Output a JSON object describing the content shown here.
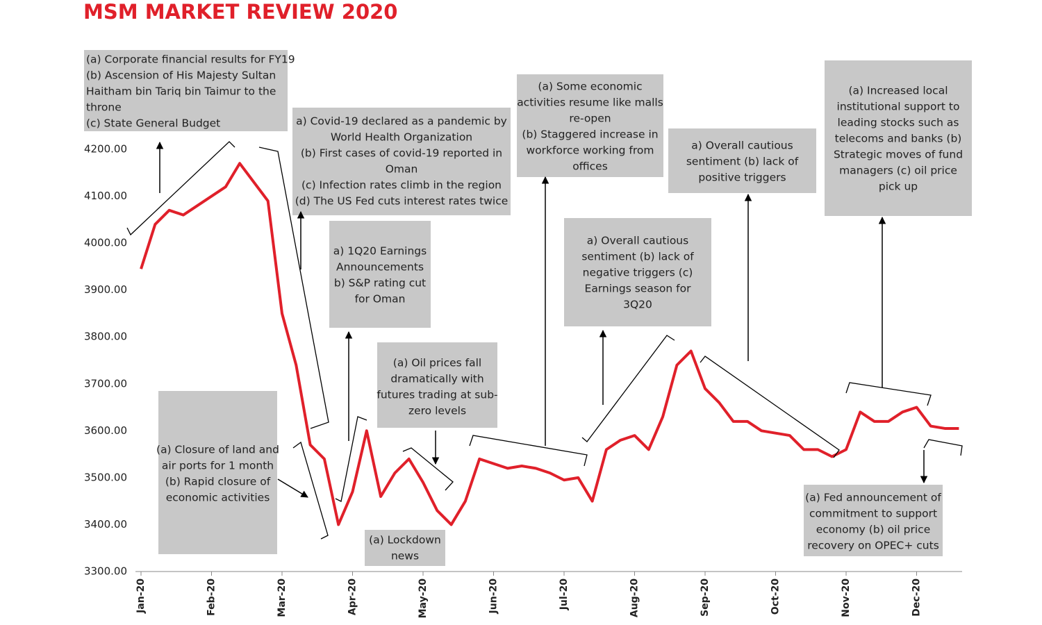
{
  "chart_data": {
    "type": "line",
    "title": "MSM MARKET REVIEW 2020",
    "categories": [
      "Jan-20",
      null,
      null,
      null,
      null,
      "Feb-20",
      null,
      null,
      null,
      null,
      "Mar-20",
      null,
      null,
      null,
      null,
      "Apr-20",
      null,
      null,
      null,
      null,
      "May-20",
      null,
      null,
      null,
      null,
      "Jun-20",
      null,
      null,
      null,
      null,
      "Jul-20",
      null,
      null,
      null,
      null,
      "Aug-20",
      null,
      null,
      null,
      null,
      "Sep-20",
      null,
      null,
      null,
      null,
      "Oct-20",
      null,
      null,
      null,
      null,
      "Nov-20",
      null,
      null,
      null,
      null,
      "Dec-20",
      null,
      null,
      null
    ],
    "series": [
      {
        "name": "MSM",
        "color": "#e0202a",
        "values": [
          3945,
          4040,
          4070,
          4060,
          4080,
          4100,
          4120,
          4170,
          4130,
          4090,
          3850,
          3740,
          3570,
          3540,
          3400,
          3470,
          3600,
          3460,
          3510,
          3540,
          3490,
          3430,
          3400,
          3450,
          3540,
          3530,
          3520,
          3525,
          3520,
          3510,
          3495,
          3500,
          3450,
          3560,
          3580,
          3590,
          3560,
          3630,
          3740,
          3770,
          3690,
          3660,
          3620,
          3620,
          3600,
          3595,
          3590,
          3560,
          3560,
          3545,
          3560,
          3640,
          3620,
          3620,
          3640,
          3650,
          3610,
          3605,
          3605
        ]
      }
    ],
    "ylim": [
      3300,
      4200
    ],
    "yticks": [
      {
        "value": 3300,
        "label": "3300.00"
      },
      {
        "value": 3400,
        "label": "3400.00"
      },
      {
        "value": 3500,
        "label": "3500.00"
      },
      {
        "value": 3600,
        "label": "3600.00"
      },
      {
        "value": 3700,
        "label": "3700.00"
      },
      {
        "value": 3800,
        "label": "3800.00"
      },
      {
        "value": 3900,
        "label": "3900.00"
      },
      {
        "value": 4000,
        "label": "4000.00"
      },
      {
        "value": 4100,
        "label": "4100.00"
      },
      {
        "value": 4200,
        "label": "4200.00"
      }
    ],
    "grid": false,
    "annotations": [
      [
        "(a) Corporate financial results for FY19",
        "(b) Ascension of His Majesty Sultan",
        "Haitham bin Tariq bin Taimur to the",
        "throne",
        "(c) State General Budget"
      ],
      [
        "a) Covid-19 declared as a pandemic by",
        "World Health Organization",
        "(b) First cases of covid-19 reported in",
        "Oman",
        "(c) Infection rates climb in the region",
        "(d) The US Fed cuts interest rates twice"
      ],
      [
        "a) 1Q20 Earnings",
        "Announcements",
        "b) S&P rating cut",
        "for Oman"
      ],
      [
        "(a) Oil prices fall",
        "dramatically with",
        "futures trading at sub-",
        "zero levels"
      ],
      [
        "(a) Closure of land and",
        "air ports for 1 month",
        "(b) Rapid closure of",
        "economic activities"
      ],
      [
        "(a) Lockdown",
        "news"
      ],
      [
        "(a) Some economic",
        "activities resume like malls",
        "re-open",
        "(b) Staggered increase in",
        "workforce working from",
        "offices"
      ],
      [
        "a) Overall cautious",
        "sentiment (b) lack of",
        "negative triggers (c)",
        "Earnings season for",
        "3Q20"
      ],
      [
        "a) Overall cautious",
        "sentiment (b) lack of",
        "positive triggers"
      ],
      [
        "(a) Increased local",
        "institutional support to",
        "leading stocks such as",
        "telecoms and banks (b)",
        "Strategic moves of fund",
        "managers (c) oil price",
        "pick up"
      ],
      [
        "(a) Fed announcement of",
        "commitment to support",
        "economy (b) oil price",
        "recovery on OPEC+ cuts"
      ]
    ]
  }
}
